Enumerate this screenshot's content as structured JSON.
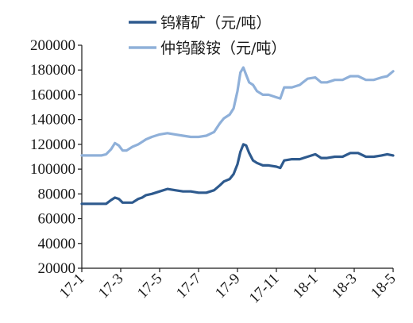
{
  "chart_data": {
    "type": "line",
    "title": "",
    "xlabel": "",
    "ylabel": "",
    "ylim": [
      20000,
      200000
    ],
    "yticks": [
      20000,
      40000,
      60000,
      80000,
      100000,
      120000,
      140000,
      160000,
      180000,
      200000
    ],
    "xticks": [
      "17-1",
      "17-3",
      "17-5",
      "17-7",
      "17-9",
      "17-11",
      "18-1",
      "18-3",
      "18-5"
    ],
    "xlim": [
      0,
      16
    ],
    "grid": false,
    "legend": "top",
    "series": [
      {
        "name": "钨精矿（元/吨）",
        "color": "#2e5a8e",
        "x": [
          0,
          0.5,
          1,
          1.25,
          1.5,
          1.7,
          1.9,
          2.1,
          2.3,
          2.6,
          2.9,
          3.1,
          3.3,
          3.6,
          4.0,
          4.4,
          4.8,
          5.2,
          5.6,
          6.0,
          6.4,
          6.8,
          7.1,
          7.3,
          7.6,
          7.8,
          8.0,
          8.15,
          8.3,
          8.45,
          8.6,
          8.8,
          9.0,
          9.3,
          9.6,
          10.0,
          10.2,
          10.4,
          10.8,
          11.2,
          11.6,
          12.0,
          12.3,
          12.6,
          13.0,
          13.4,
          13.8,
          14.2,
          14.6,
          15.0,
          15.4,
          15.7,
          16.0
        ],
        "values": [
          72000,
          72000,
          72000,
          72000,
          75000,
          77000,
          76000,
          73000,
          73000,
          73000,
          76000,
          77000,
          79000,
          80000,
          82000,
          84000,
          83000,
          82000,
          82000,
          81000,
          81000,
          83000,
          87000,
          90000,
          92000,
          96000,
          104000,
          114000,
          120000,
          119000,
          113000,
          107000,
          105000,
          103000,
          103000,
          102000,
          101000,
          107000,
          108000,
          108000,
          110000,
          112000,
          109000,
          109000,
          110000,
          110000,
          113000,
          113000,
          110000,
          110000,
          111000,
          112000,
          111000
        ]
      },
      {
        "name": "仲钨酸铵（元/吨）",
        "color": "#8fb0d9",
        "x": [
          0,
          0.5,
          1,
          1.25,
          1.5,
          1.7,
          1.9,
          2.1,
          2.3,
          2.6,
          2.9,
          3.1,
          3.3,
          3.6,
          4.0,
          4.4,
          4.8,
          5.2,
          5.6,
          6.0,
          6.4,
          6.8,
          7.1,
          7.3,
          7.6,
          7.8,
          8.0,
          8.15,
          8.3,
          8.45,
          8.6,
          8.8,
          9.0,
          9.3,
          9.6,
          10.0,
          10.2,
          10.4,
          10.8,
          11.2,
          11.6,
          12.0,
          12.3,
          12.6,
          13.0,
          13.4,
          13.8,
          14.2,
          14.6,
          15.0,
          15.4,
          15.7,
          16.0
        ],
        "values": [
          111000,
          111000,
          111000,
          112000,
          116000,
          121000,
          119000,
          115000,
          115000,
          118000,
          120000,
          122000,
          124000,
          126000,
          128000,
          129000,
          128000,
          127000,
          126000,
          126000,
          127000,
          130000,
          137000,
          141000,
          144000,
          149000,
          163000,
          178000,
          182000,
          176000,
          170000,
          168000,
          163000,
          160000,
          160000,
          158000,
          157000,
          166000,
          166000,
          168000,
          173000,
          174000,
          170000,
          170000,
          172000,
          172000,
          175000,
          175000,
          172000,
          172000,
          174000,
          175000,
          179000
        ]
      }
    ]
  }
}
